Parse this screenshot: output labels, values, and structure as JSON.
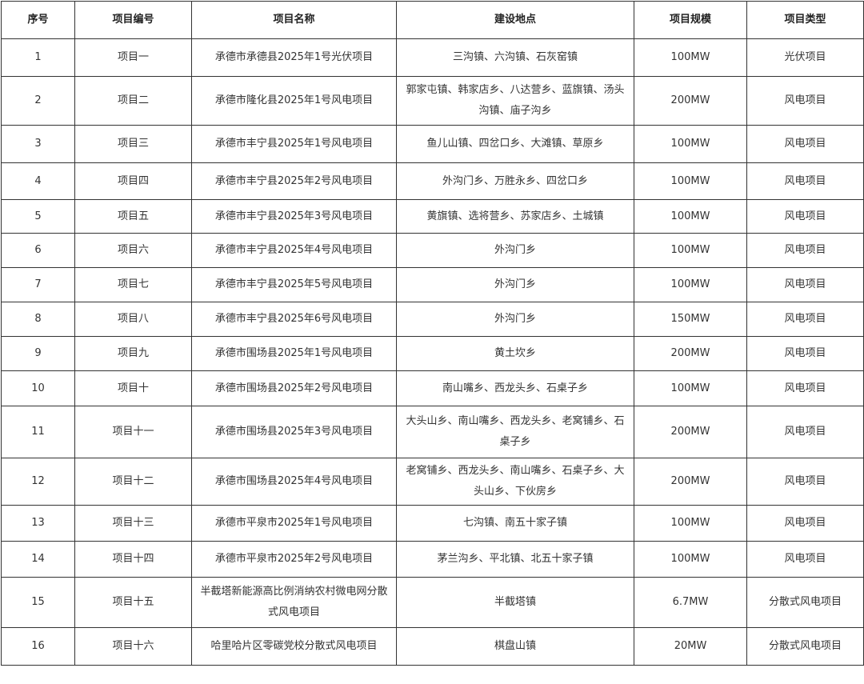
{
  "table": {
    "headers": [
      "序号",
      "项目编号",
      "项目名称",
      "建设地点",
      "项目规模",
      "项目类型"
    ],
    "rows": [
      [
        "1",
        "项目一",
        "承德市承德县2025年1号光伏项目",
        "三沟镇、六沟镇、石灰窑镇",
        "100MW",
        "光伏项目"
      ],
      [
        "2",
        "项目二",
        "承德市隆化县2025年1号风电项目",
        "郭家屯镇、韩家店乡、八达营乡、蓝旗镇、汤头沟镇、庙子沟乡",
        "200MW",
        "风电项目"
      ],
      [
        "3",
        "项目三",
        "承德市丰宁县2025年1号风电项目",
        "鱼儿山镇、四岔口乡、大滩镇、草原乡",
        "100MW",
        "风电项目"
      ],
      [
        "4",
        "项目四",
        "承德市丰宁县2025年2号风电项目",
        "外沟门乡、万胜永乡、四岔口乡",
        "100MW",
        "风电项目"
      ],
      [
        "5",
        "项目五",
        "承德市丰宁县2025年3号风电项目",
        "黄旗镇、选将营乡、苏家店乡、土城镇",
        "100MW",
        "风电项目"
      ],
      [
        "6",
        "项目六",
        "承德市丰宁县2025年4号风电项目",
        "外沟门乡",
        "100MW",
        "风电项目"
      ],
      [
        "7",
        "项目七",
        "承德市丰宁县2025年5号风电项目",
        "外沟门乡",
        "100MW",
        "风电项目"
      ],
      [
        "8",
        "项目八",
        "承德市丰宁县2025年6号风电项目",
        "外沟门乡",
        "150MW",
        "风电项目"
      ],
      [
        "9",
        "项目九",
        "承德市围场县2025年1号风电项目",
        "黄土坎乡",
        "200MW",
        "风电项目"
      ],
      [
        "10",
        "项目十",
        "承德市围场县2025年2号风电项目",
        "南山嘴乡、西龙头乡、石桌子乡",
        "100MW",
        "风电项目"
      ],
      [
        "11",
        "项目十一",
        "承德市围场县2025年3号风电项目",
        "大头山乡、南山嘴乡、西龙头乡、老窝铺乡、石桌子乡",
        "200MW",
        "风电项目"
      ],
      [
        "12",
        "项目十二",
        "承德市围场县2025年4号风电项目",
        "老窝铺乡、西龙头乡、南山嘴乡、石桌子乡、大头山乡、下伙房乡",
        "200MW",
        "风电项目"
      ],
      [
        "13",
        "项目十三",
        "承德市平泉市2025年1号风电项目",
        "七沟镇、南五十家子镇",
        "100MW",
        "风电项目"
      ],
      [
        "14",
        "项目十四",
        "承德市平泉市2025年2号风电项目",
        "茅兰沟乡、平北镇、北五十家子镇",
        "100MW",
        "风电项目"
      ],
      [
        "15",
        "项目十五",
        "半截塔新能源高比例消纳农村微电网分散式风电项目",
        "半截塔镇",
        "6.7MW",
        "分散式风电项目"
      ],
      [
        "16",
        "项目十六",
        "哈里哈片区零碳党校分散式风电项目",
        "棋盘山镇",
        "20MW",
        "分散式风电项目"
      ]
    ]
  }
}
